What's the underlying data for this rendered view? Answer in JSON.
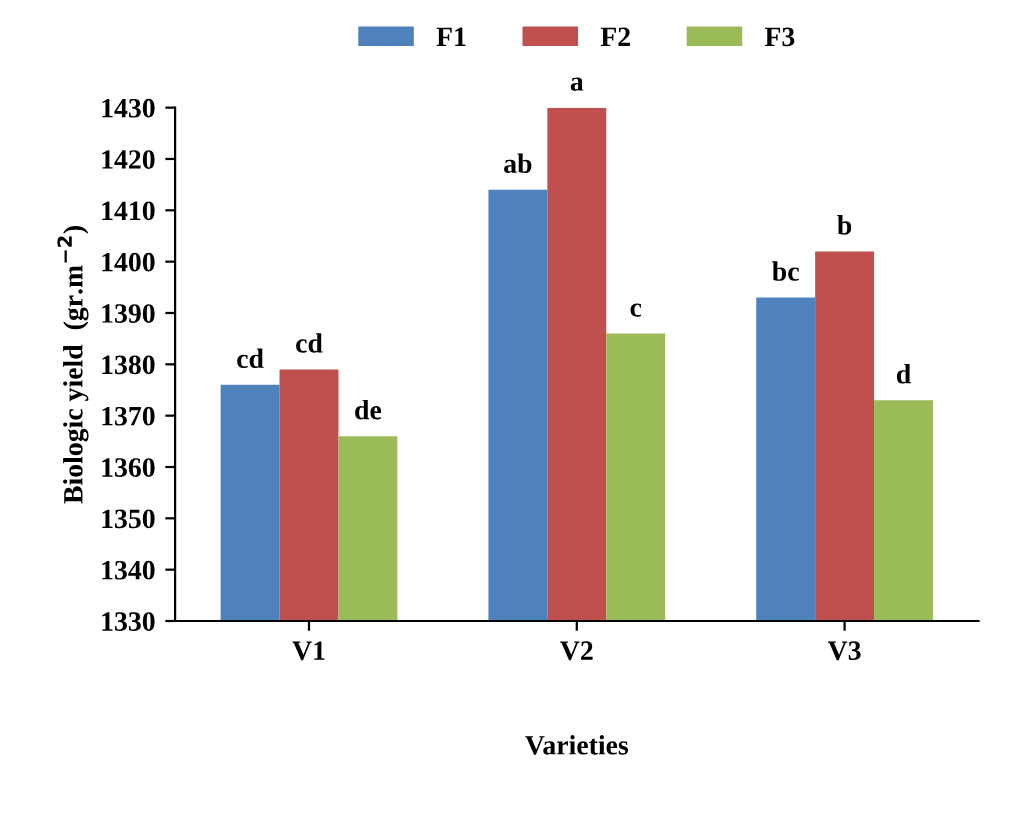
{
  "chart_data": {
    "type": "bar",
    "xlabel": "Varieties",
    "ylabel": "Biologic yield  (gr.m$^{−2}$)",
    "categories": [
      "V1",
      "V2",
      "V3"
    ],
    "series": [
      {
        "name": "F1",
        "color": "#4f81bd",
        "values": [
          1376,
          1414,
          1393
        ],
        "value_labels": [
          "cd",
          "ab",
          "bc"
        ]
      },
      {
        "name": "F2",
        "color": "#c0504d",
        "values": [
          1379,
          1430,
          1402
        ],
        "value_labels": [
          "cd",
          "a",
          "b"
        ]
      },
      {
        "name": "F3",
        "color": "#9bbb59",
        "values": [
          1366,
          1386,
          1373
        ],
        "value_labels": [
          "de",
          "c",
          "d"
        ]
      }
    ],
    "ylim": [
      1330,
      1430
    ],
    "yticks": [
      1330,
      1340,
      1350,
      1360,
      1370,
      1380,
      1390,
      1400,
      1410,
      1420,
      1430
    ],
    "grid": false,
    "legend": "top"
  }
}
